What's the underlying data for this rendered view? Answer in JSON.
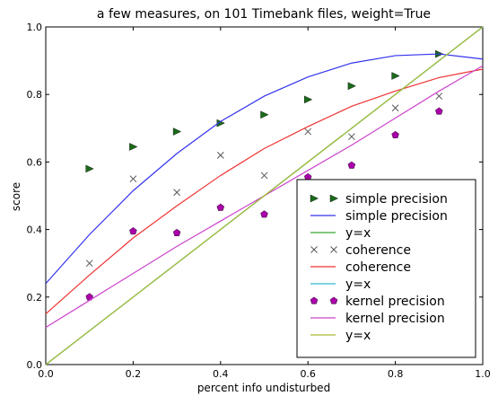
{
  "chart_data": {
    "type": "line",
    "title": "a few measures, on 101 Timebank files, weight=True",
    "xlabel": "percent info undisturbed",
    "ylabel": "score",
    "xlim": [
      0.0,
      1.0
    ],
    "ylim": [
      0.0,
      1.0
    ],
    "xticks": [
      "0.0",
      "0.2",
      "0.4",
      "0.6",
      "0.8",
      "1.0"
    ],
    "yticks": [
      "0.0",
      "0.2",
      "0.4",
      "0.6",
      "0.8",
      "1.0"
    ],
    "grid": false,
    "legend_placement": "bottom-right",
    "series": [
      {
        "name": "simple precision",
        "kind": "marker",
        "marker": "triangle-right",
        "color": "#1a6b1a",
        "x": [
          0.1,
          0.2,
          0.3,
          0.4,
          0.5,
          0.6,
          0.7,
          0.8,
          0.9
        ],
        "y": [
          0.58,
          0.645,
          0.69,
          0.715,
          0.74,
          0.785,
          0.825,
          0.855,
          0.92
        ]
      },
      {
        "name": "simple precision",
        "kind": "line",
        "color": "#3333ee",
        "x": [
          0.0,
          0.1,
          0.2,
          0.3,
          0.4,
          0.5,
          0.6,
          0.7,
          0.8,
          0.9,
          1.0
        ],
        "y": [
          0.24,
          0.385,
          0.515,
          0.625,
          0.72,
          0.795,
          0.852,
          0.893,
          0.915,
          0.92,
          0.905
        ]
      },
      {
        "name": "y=x",
        "kind": "line",
        "color": "#33aa33",
        "x": [
          0.0,
          1.0
        ],
        "y": [
          0.0,
          1.0
        ]
      },
      {
        "name": "coherence",
        "kind": "marker",
        "marker": "x",
        "color": "#555555",
        "x": [
          0.1,
          0.2,
          0.3,
          0.4,
          0.5,
          0.6,
          0.7,
          0.8,
          0.9
        ],
        "y": [
          0.3,
          0.55,
          0.51,
          0.62,
          0.56,
          0.69,
          0.675,
          0.76,
          0.795
        ]
      },
      {
        "name": "coherence",
        "kind": "line",
        "color": "#ee3333",
        "x": [
          0.0,
          0.1,
          0.2,
          0.3,
          0.4,
          0.5,
          0.6,
          0.7,
          0.8,
          0.9,
          1.0
        ],
        "y": [
          0.15,
          0.265,
          0.375,
          0.47,
          0.56,
          0.64,
          0.705,
          0.765,
          0.81,
          0.85,
          0.875
        ]
      },
      {
        "name": "y=x",
        "kind": "line",
        "color": "#33bbcc",
        "x": [
          0.0,
          1.0
        ],
        "y": [
          0.0,
          1.0
        ]
      },
      {
        "name": "kernel precision",
        "kind": "marker",
        "marker": "pentagon",
        "color": "#aa00aa",
        "x": [
          0.1,
          0.2,
          0.3,
          0.4,
          0.5,
          0.6,
          0.7,
          0.8,
          0.9
        ],
        "y": [
          0.2,
          0.395,
          0.39,
          0.465,
          0.445,
          0.555,
          0.59,
          0.68,
          0.75
        ]
      },
      {
        "name": "kernel precision",
        "kind": "line",
        "color": "#cc44cc",
        "x": [
          0.0,
          0.1,
          0.2,
          0.3,
          0.4,
          0.5,
          0.6,
          0.7,
          0.8,
          0.9,
          1.0
        ],
        "y": [
          0.11,
          0.19,
          0.27,
          0.35,
          0.425,
          0.5,
          0.575,
          0.65,
          0.73,
          0.81,
          0.885
        ]
      },
      {
        "name": "y=x",
        "kind": "line",
        "color": "#aabb33",
        "x": [
          0.0,
          1.0
        ],
        "y": [
          0.0,
          1.0
        ]
      }
    ]
  }
}
